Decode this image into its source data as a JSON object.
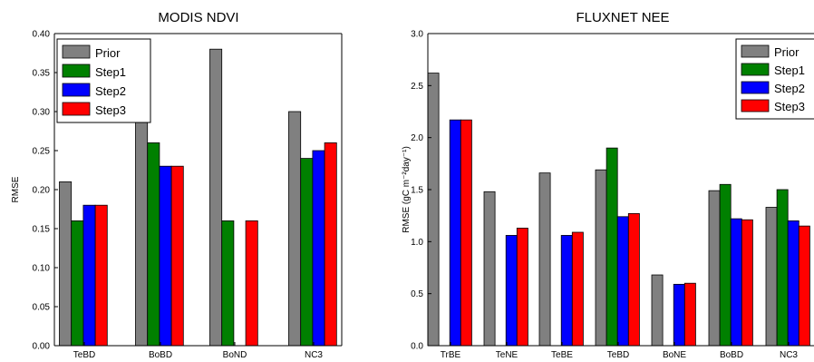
{
  "chart_data": [
    {
      "type": "bar",
      "title": "MODIS NDVI",
      "xlabel": "",
      "ylabel": "RMSE",
      "ylim": [
        0,
        0.4
      ],
      "yticks": [
        "0.00",
        "0.05",
        "0.10",
        "0.15",
        "0.20",
        "0.25",
        "0.30",
        "0.35",
        "0.40"
      ],
      "categories": [
        "TeBD",
        "BoBD",
        "BoND",
        "NC3"
      ],
      "series": [
        {
          "name": "Prior",
          "color": "#808080",
          "values": [
            0.21,
            0.31,
            0.38,
            0.3
          ]
        },
        {
          "name": "Step1",
          "color": "#008000",
          "values": [
            0.16,
            0.26,
            0.16,
            0.24
          ]
        },
        {
          "name": "Step2",
          "color": "#0000ff",
          "values": [
            0.18,
            0.23,
            null,
            0.25
          ]
        },
        {
          "name": "Step3",
          "color": "#ff0000",
          "values": [
            0.18,
            0.23,
            0.16,
            0.26
          ]
        }
      ],
      "legend": "top-left",
      "grid": false
    },
    {
      "type": "bar",
      "title": "FLUXNET NEE",
      "xlabel": "",
      "ylabel": "RMSE (gC m⁻²day⁻¹)",
      "ylim": [
        0,
        3.0
      ],
      "yticks": [
        "0.0",
        "0.5",
        "1.0",
        "1.5",
        "2.0",
        "2.5",
        "3.0"
      ],
      "categories": [
        "TrBE",
        "TeNE",
        "TeBE",
        "TeBD",
        "BoNE",
        "BoBD",
        "NC3"
      ],
      "series": [
        {
          "name": "Prior",
          "color": "#808080",
          "values": [
            2.62,
            1.48,
            1.66,
            1.69,
            0.68,
            1.49,
            1.33
          ]
        },
        {
          "name": "Step1",
          "color": "#008000",
          "values": [
            null,
            null,
            null,
            1.9,
            null,
            1.55,
            1.5
          ]
        },
        {
          "name": "Step2",
          "color": "#0000ff",
          "values": [
            2.17,
            1.06,
            1.06,
            1.24,
            0.59,
            1.22,
            1.2
          ]
        },
        {
          "name": "Step3",
          "color": "#ff0000",
          "values": [
            2.17,
            1.13,
            1.09,
            1.27,
            0.6,
            1.21,
            1.15
          ]
        }
      ],
      "legend": "top-right",
      "grid": false
    }
  ]
}
